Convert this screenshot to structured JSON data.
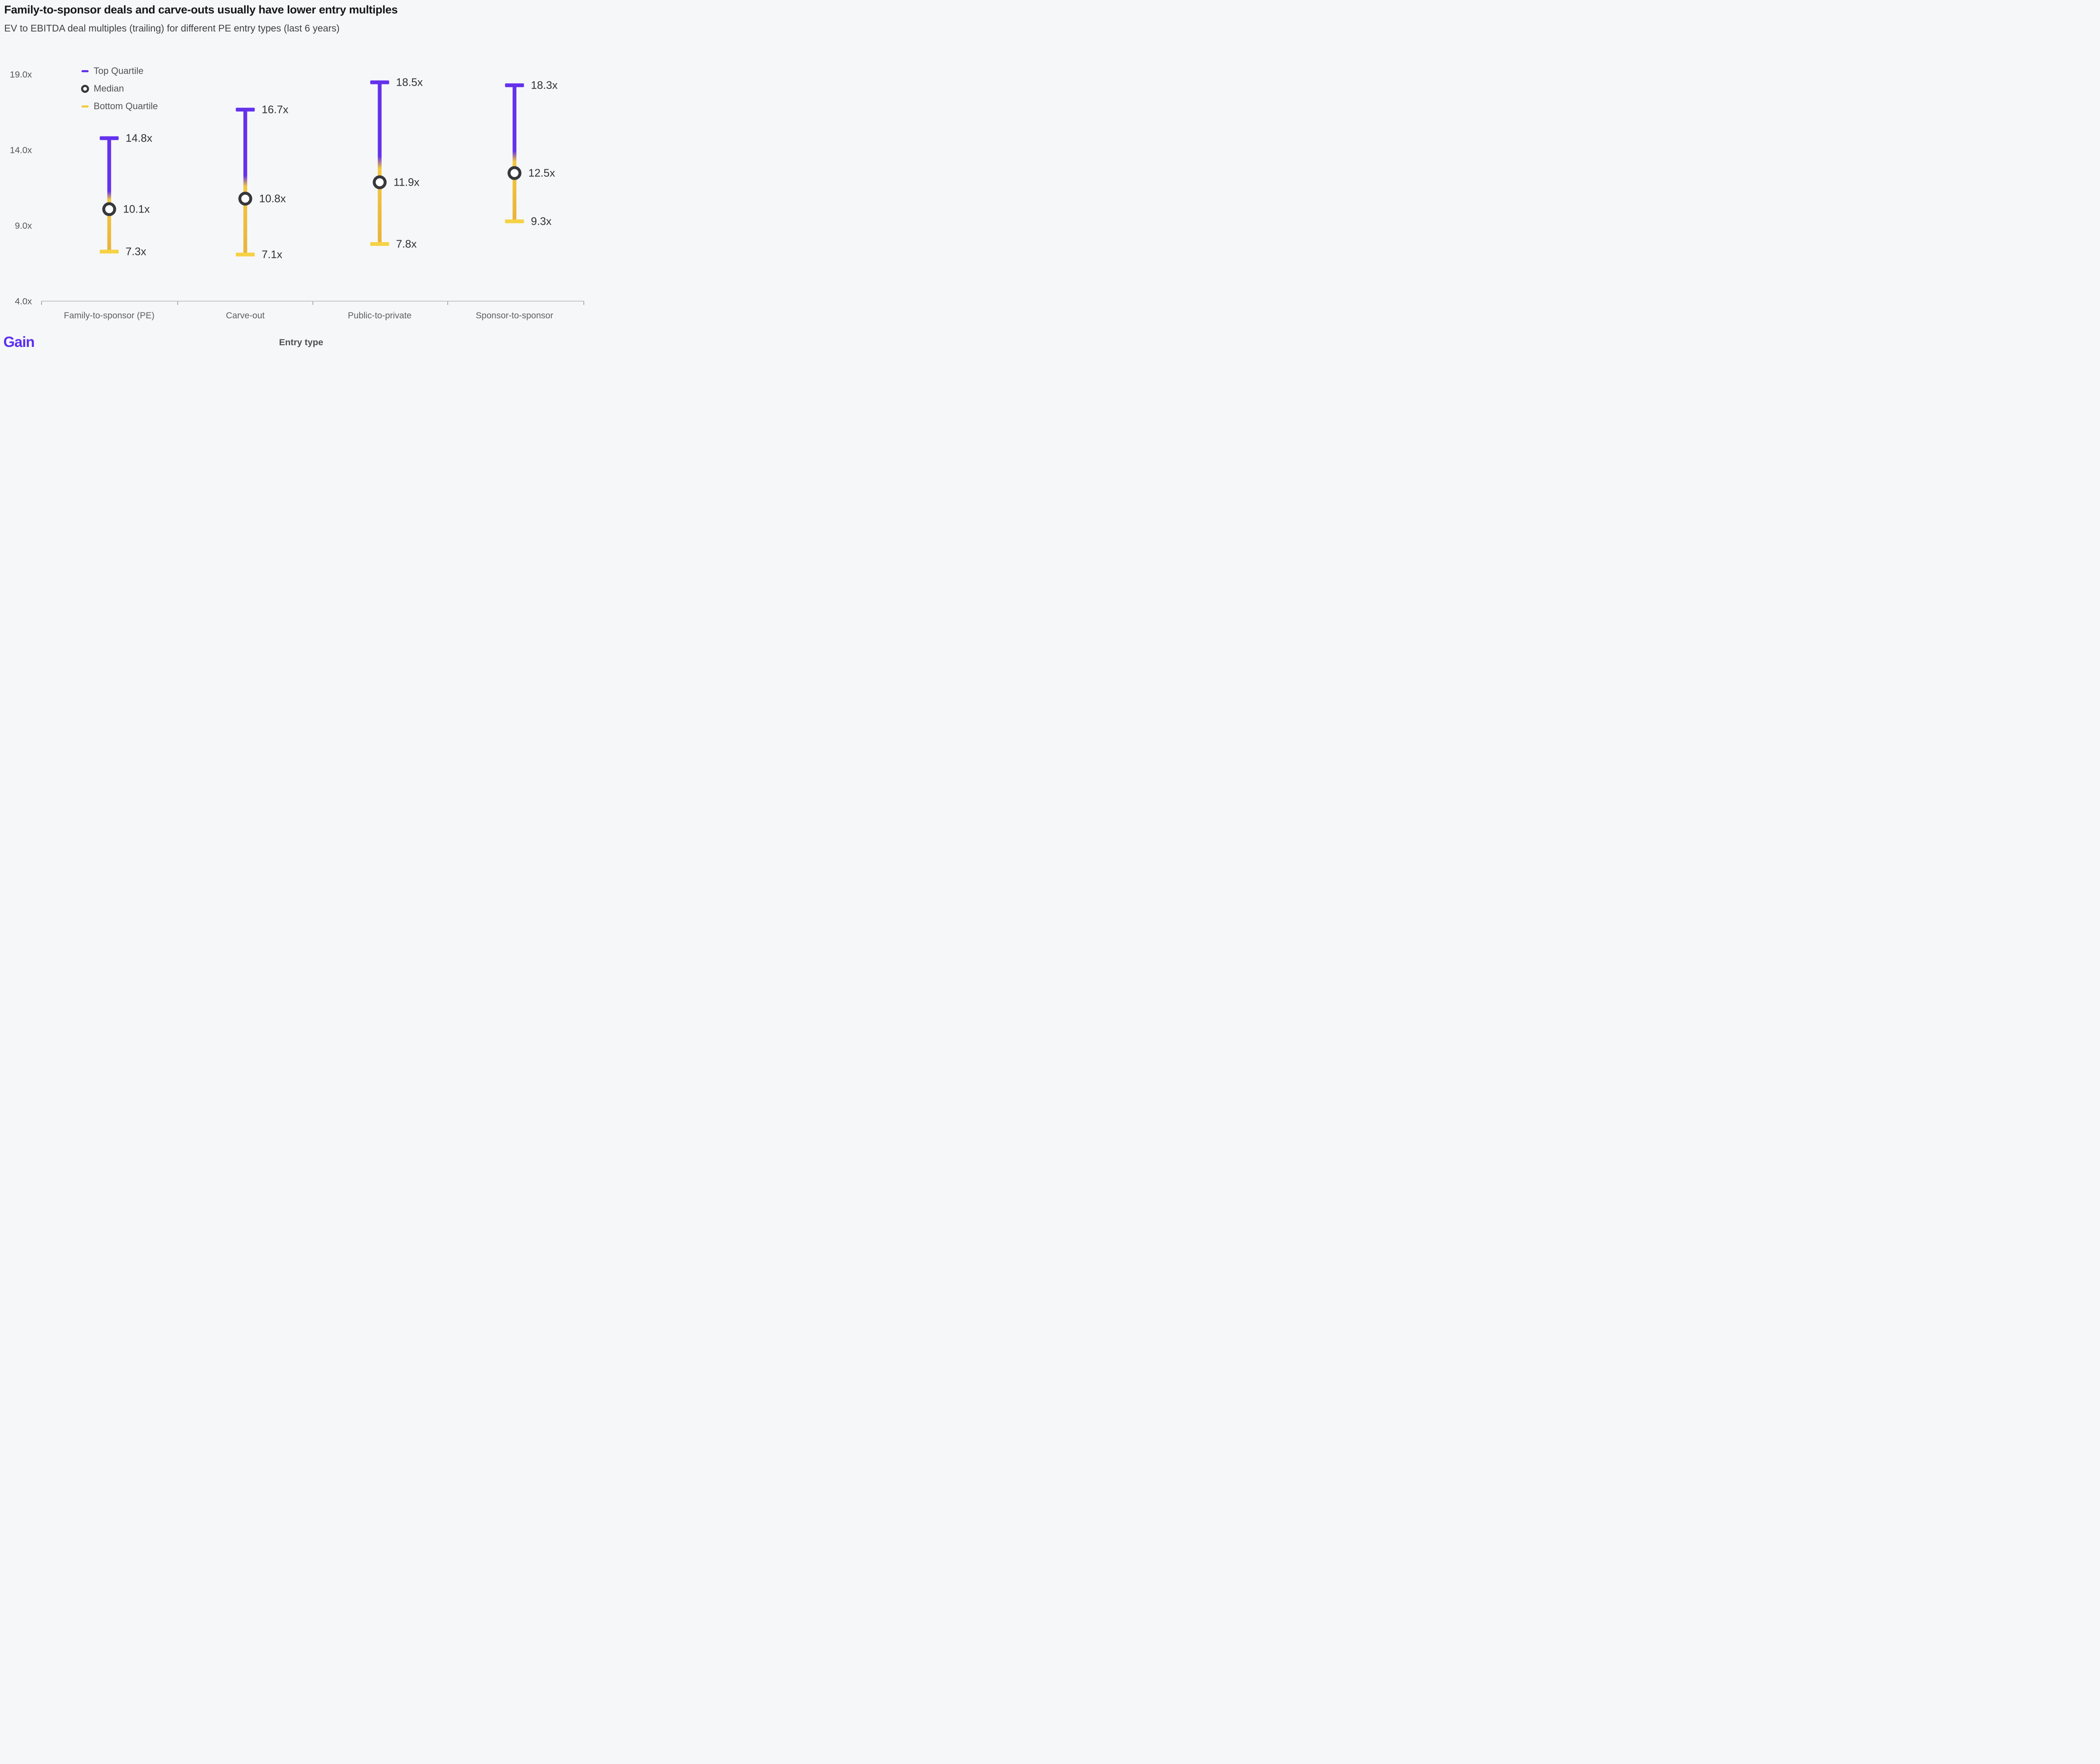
{
  "header": {
    "title": "Family-to-sponsor deals and carve-outs usually have lower entry multiples",
    "subtitle": "EV to EBITDA deal multiples (trailing) for different PE entry types (last 6 years)"
  },
  "legend": {
    "items": [
      {
        "label": "Top Quartile",
        "marker": "dash-icon",
        "color": "#6431EC"
      },
      {
        "label": "Median",
        "marker": "ring-icon",
        "color": "#37383C"
      },
      {
        "label": "Bottom Quartile",
        "marker": "dash-icon",
        "color": "#F2CB3D"
      }
    ]
  },
  "chart_data": {
    "type": "bar",
    "subtype": "quartile-range-dumbbell",
    "categories": [
      "Family-to-sponsor (PE)",
      "Carve-out",
      "Public-to-private",
      "Sponsor-to-sponsor"
    ],
    "series": [
      {
        "name": "Top Quartile",
        "values": [
          14.8,
          16.7,
          18.5,
          18.3
        ]
      },
      {
        "name": "Median",
        "values": [
          10.1,
          10.8,
          11.9,
          12.5
        ]
      },
      {
        "name": "Bottom Quartile",
        "values": [
          7.3,
          7.1,
          7.8,
          9.3
        ]
      }
    ],
    "value_suffix": "x",
    "title": "EV to EBITDA deal multiples (trailing) for different PE entry types (last 6 years)",
    "xlabel": "Entry type",
    "ylabel": "",
    "ylim": [
      4.0,
      19.0
    ],
    "y_ticks": [
      {
        "label": "19.0x",
        "value": 19.0
      },
      {
        "label": "14.0x",
        "value": 14.0
      },
      {
        "label": "9.0x",
        "value": 9.0
      },
      {
        "label": "4.0x",
        "value": 4.0
      }
    ],
    "grid": false,
    "legend_position": "top-left"
  },
  "footer": {
    "logo_text": "Gain",
    "xaxis_title": "Entry type"
  },
  "colors": {
    "background": "#F6F7F9",
    "purple": "#6431EC",
    "yellow_dash": "#F2CB3D",
    "yellow_mid": "#F2C83F",
    "yellow_deep": "#E9B23A",
    "yellow_cap": "#F5D244",
    "ring_dark": "#37383C",
    "axis_line": "#C3C5C7",
    "axis_tick": "#A9ABAD",
    "value_text": "#303136",
    "logo_purple": "#5B2FF2"
  }
}
